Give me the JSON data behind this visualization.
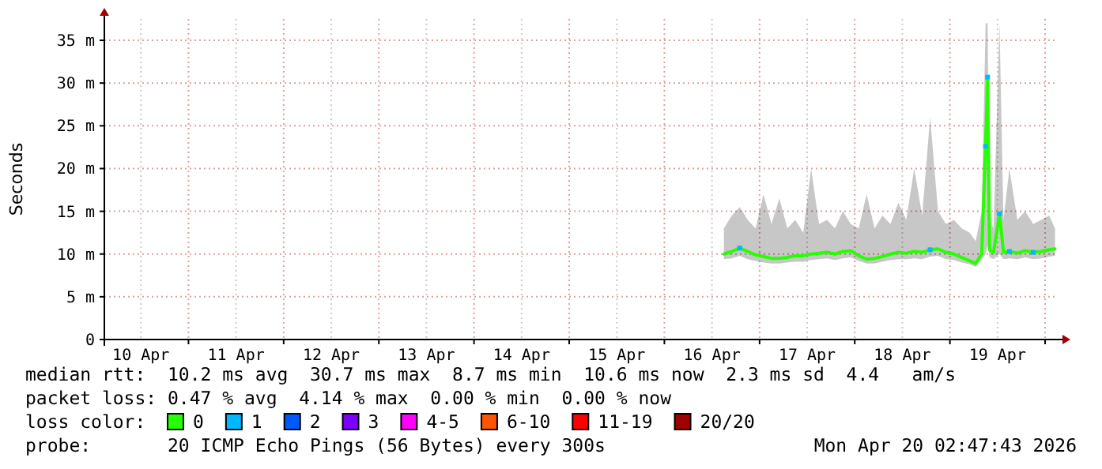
{
  "chart_data": {
    "type": "line",
    "ylabel": "Seconds",
    "legend_title": "loss color:",
    "legend": "bottom",
    "grid": true,
    "line_style": "solid",
    "xlim": [
      "2026-04-10T02:47",
      "2026-04-20T02:47"
    ],
    "xticks": [
      {
        "value": "2026-04-10T12:00",
        "label": "10 Apr"
      },
      {
        "value": "2026-04-11T00:00",
        "label": null
      },
      {
        "value": "2026-04-11T12:00",
        "label": "11 Apr"
      },
      {
        "value": "2026-04-12T00:00",
        "label": null
      },
      {
        "value": "2026-04-12T12:00",
        "label": "12 Apr"
      },
      {
        "value": "2026-04-13T00:00",
        "label": null
      },
      {
        "value": "2026-04-13T12:00",
        "label": "13 Apr"
      },
      {
        "value": "2026-04-14T00:00",
        "label": null
      },
      {
        "value": "2026-04-14T12:00",
        "label": "14 Apr"
      },
      {
        "value": "2026-04-15T00:00",
        "label": null
      },
      {
        "value": "2026-04-15T12:00",
        "label": "15 Apr"
      },
      {
        "value": "2026-04-16T00:00",
        "label": null
      },
      {
        "value": "2026-04-16T12:00",
        "label": "16 Apr"
      },
      {
        "value": "2026-04-17T00:00",
        "label": null
      },
      {
        "value": "2026-04-17T12:00",
        "label": "17 Apr"
      },
      {
        "value": "2026-04-18T00:00",
        "label": null
      },
      {
        "value": "2026-04-18T12:00",
        "label": "18 Apr"
      },
      {
        "value": "2026-04-19T00:00",
        "label": null
      },
      {
        "value": "2026-04-19T12:00",
        "label": "19 Apr"
      },
      {
        "value": "2026-04-20T00:00",
        "label": null
      }
    ],
    "ylim": [
      0,
      37.5
    ],
    "yticks": [
      0,
      {
        "value": 5,
        "label": "5 m"
      },
      {
        "value": 10,
        "label": "10 m"
      },
      {
        "value": 15,
        "label": "15 m"
      },
      {
        "value": 20,
        "label": "20 m"
      },
      {
        "value": 25,
        "label": "25 m"
      },
      {
        "value": 30,
        "label": "30 m"
      },
      {
        "value": 35,
        "label": "35 m"
      }
    ],
    "x": [
      "2026-04-16T15:00",
      "2026-04-16T17:00",
      "2026-04-16T19:00",
      "2026-04-16T21:00",
      "2026-04-16T23:00",
      "2026-04-17T01:00",
      "2026-04-17T03:00",
      "2026-04-17T05:00",
      "2026-04-17T07:00",
      "2026-04-17T09:00",
      "2026-04-17T11:00",
      "2026-04-17T13:00",
      "2026-04-17T15:00",
      "2026-04-17T17:00",
      "2026-04-17T19:00",
      "2026-04-17T21:00",
      "2026-04-17T23:00",
      "2026-04-18T01:00",
      "2026-04-18T03:00",
      "2026-04-18T05:00",
      "2026-04-18T07:00",
      "2026-04-18T09:00",
      "2026-04-18T11:00",
      "2026-04-18T13:00",
      "2026-04-18T15:00",
      "2026-04-18T17:00",
      "2026-04-18T19:00",
      "2026-04-18T21:00",
      "2026-04-18T23:00",
      "2026-04-19T01:00",
      "2026-04-19T03:00",
      "2026-04-19T05:00",
      "2026-04-19T06:30",
      "2026-04-19T08:00",
      "2026-04-19T09:00",
      "2026-04-19T09:30",
      "2026-04-19T10:00",
      "2026-04-19T11:00",
      "2026-04-19T12:30",
      "2026-04-19T13:30",
      "2026-04-19T15:00",
      "2026-04-19T17:00",
      "2026-04-19T19:00",
      "2026-04-19T21:00",
      "2026-04-19T23:00",
      "2026-04-20T01:00",
      "2026-04-20T02:30"
    ],
    "series": [
      {
        "name": "0",
        "color": "#26ff00",
        "values": [
          10.0,
          10.3,
          10.7,
          10.3,
          9.9,
          9.7,
          9.5,
          9.5,
          9.6,
          9.8,
          9.8,
          10.0,
          10.1,
          10.2,
          10.0,
          10.3,
          10.4,
          9.8,
          9.4,
          9.5,
          9.7,
          10.0,
          10.2,
          10.1,
          10.3,
          10.2,
          10.5,
          10.6,
          10.2,
          10.0,
          9.6,
          9.2,
          8.9,
          10.0,
          22.6,
          30.7,
          10.5,
          10.2,
          14.7,
          10.2,
          10.3,
          10.1,
          10.4,
          10.2,
          10.3,
          10.5,
          10.6
        ],
        "lower": [
          9.4,
          9.5,
          9.8,
          9.4,
          9.2,
          9.0,
          8.9,
          8.9,
          9.0,
          9.1,
          9.1,
          9.3,
          9.4,
          9.5,
          9.3,
          9.5,
          9.6,
          9.2,
          8.9,
          8.9,
          9.1,
          9.3,
          9.4,
          9.4,
          9.5,
          9.4,
          9.7,
          9.8,
          9.4,
          9.3,
          9.0,
          8.8,
          8.5,
          9.3,
          10.0,
          11.0,
          9.6,
          9.4,
          10.0,
          9.4,
          9.5,
          9.4,
          9.6,
          9.4,
          9.5,
          9.7,
          9.8
        ],
        "upper": [
          13.0,
          14.5,
          15.5,
          14.0,
          13.0,
          17.0,
          13.5,
          16.5,
          13.0,
          14.0,
          12.5,
          20.0,
          13.5,
          14.0,
          13.0,
          15.0,
          13.5,
          13.0,
          17.0,
          13.0,
          14.5,
          13.5,
          16.0,
          14.0,
          20.0,
          14.5,
          26.0,
          15.0,
          13.5,
          14.0,
          13.0,
          12.5,
          11.5,
          15.0,
          37.0,
          37.0,
          14.0,
          13.0,
          37.0,
          14.0,
          20.0,
          14.0,
          15.0,
          13.5,
          14.0,
          14.5,
          13.0
        ]
      },
      {
        "name": "1",
        "color": "#00b8ff",
        "type": "scatter",
        "marker": "square",
        "values": [
          null,
          null,
          10.7,
          null,
          null,
          null,
          null,
          null,
          null,
          null,
          null,
          null,
          null,
          null,
          null,
          null,
          null,
          null,
          null,
          null,
          null,
          null,
          null,
          null,
          null,
          null,
          10.5,
          null,
          null,
          null,
          null,
          null,
          null,
          null,
          22.6,
          30.7,
          null,
          null,
          14.7,
          null,
          10.3,
          null,
          null,
          10.2,
          null,
          null,
          null
        ]
      },
      {
        "name": "2",
        "color": "#0059ff",
        "type": "scatter",
        "marker": "square",
        "values": [
          null,
          null,
          null,
          null,
          null,
          null,
          null,
          null,
          null,
          null,
          null,
          null,
          null,
          null,
          null,
          null,
          null,
          null,
          null,
          null,
          null,
          null,
          null,
          null,
          null,
          null,
          null,
          null,
          null,
          null,
          null,
          null,
          null,
          null,
          null,
          null,
          null,
          null,
          null,
          null,
          null,
          null,
          null,
          null,
          null,
          null,
          null
        ]
      },
      {
        "name": "3",
        "color": "#7e00ff",
        "type": "scatter",
        "marker": "square",
        "values": [
          null,
          null,
          null,
          null,
          null,
          null,
          null,
          null,
          null,
          null,
          null,
          null,
          null,
          null,
          null,
          null,
          null,
          null,
          null,
          null,
          null,
          null,
          null,
          null,
          null,
          null,
          null,
          null,
          null,
          null,
          null,
          null,
          null,
          null,
          null,
          null,
          null,
          null,
          null,
          null,
          null,
          null,
          null,
          null,
          null,
          null,
          null
        ]
      },
      {
        "name": "4-5",
        "color": "#ff00ff",
        "type": "scatter",
        "marker": "square",
        "values": [
          null,
          null,
          null,
          null,
          null,
          null,
          null,
          null,
          null,
          null,
          null,
          null,
          null,
          null,
          null,
          null,
          null,
          null,
          null,
          null,
          null,
          null,
          null,
          null,
          null,
          null,
          null,
          null,
          null,
          null,
          null,
          null,
          null,
          null,
          null,
          null,
          null,
          null,
          null,
          null,
          null,
          null,
          null,
          null,
          null,
          null,
          null
        ]
      },
      {
        "name": "6-10",
        "color": "#ff5500",
        "type": "scatter",
        "marker": "square",
        "values": [
          null,
          null,
          null,
          null,
          null,
          null,
          null,
          null,
          null,
          null,
          null,
          null,
          null,
          null,
          null,
          null,
          null,
          null,
          null,
          null,
          null,
          null,
          null,
          null,
          null,
          null,
          null,
          null,
          null,
          null,
          null,
          null,
          null,
          null,
          null,
          null,
          null,
          null,
          null,
          null,
          null,
          null,
          null,
          null,
          null,
          null,
          null
        ]
      },
      {
        "name": "11-19",
        "color": "#ff0000",
        "type": "scatter",
        "marker": "square",
        "values": [
          null,
          null,
          null,
          null,
          null,
          null,
          null,
          null,
          null,
          null,
          null,
          null,
          null,
          null,
          null,
          null,
          null,
          null,
          null,
          null,
          null,
          null,
          null,
          null,
          null,
          null,
          null,
          null,
          null,
          null,
          null,
          null,
          null,
          null,
          null,
          null,
          null,
          null,
          null,
          null,
          null,
          null,
          null,
          null,
          null,
          null,
          null
        ]
      },
      {
        "name": "20/20",
        "color": "#a10000",
        "type": "scatter",
        "marker": "square",
        "values": [
          null,
          null,
          null,
          null,
          null,
          null,
          null,
          null,
          null,
          null,
          null,
          null,
          null,
          null,
          null,
          null,
          null,
          null,
          null,
          null,
          null,
          null,
          null,
          null,
          null,
          null,
          null,
          null,
          null,
          null,
          null,
          null,
          null,
          null,
          null,
          null,
          null,
          null,
          null,
          null,
          null,
          null,
          null,
          null,
          null,
          null,
          null
        ]
      }
    ],
    "annotations": [
      "median rtt:  10.2 ms avg  30.7 ms max  8.7 ms min  10.6 ms now  2.3 ms sd  4.4   am/s",
      "packet loss: 0.47 % avg  4.14 % max  0.00 % min  0.00 % now",
      "probe:       20 ICMP Echo Pings (56 Bytes) every 300s",
      "Mon Apr 20 02:47:43 2026"
    ]
  }
}
